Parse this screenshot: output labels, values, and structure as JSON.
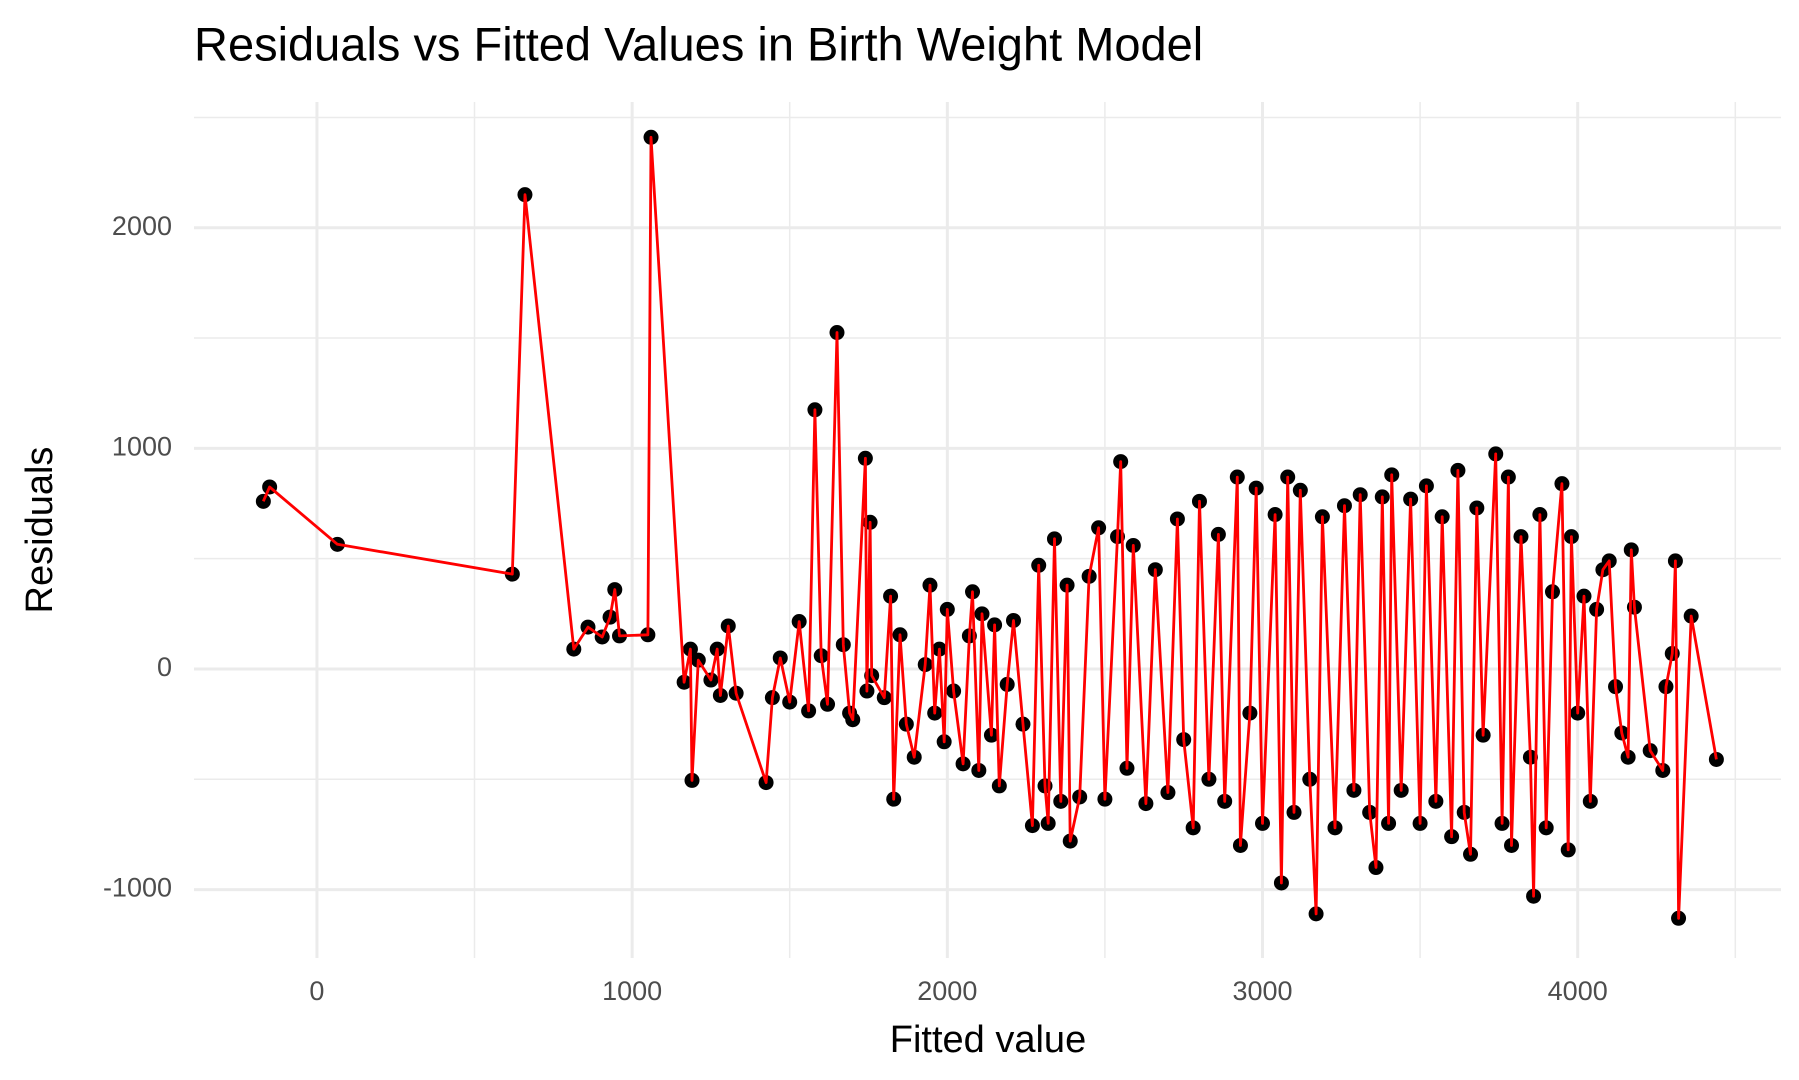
{
  "chart_data": {
    "type": "scatter",
    "title": "Residuals vs Fitted Values in Birth Weight Model",
    "xlabel": "Fitted value",
    "ylabel": "Residuals",
    "point_color": "#000000",
    "line_color": "#ff0000",
    "grid": true,
    "xlim": [
      -390,
      4645
    ],
    "ylim": [
      -1310,
      2570
    ],
    "xticks": [
      0,
      1000,
      2000,
      3000,
      4000
    ],
    "yticks": [
      -1000,
      0,
      1000,
      2000
    ],
    "x_minor_ticks": [
      500,
      1500,
      2500,
      3500,
      4500
    ],
    "y_minor_ticks": [
      -500,
      500,
      1500,
      2500
    ],
    "x": [
      -170,
      -150,
      65,
      620,
      660,
      815,
      860,
      905,
      930,
      945,
      960,
      1050,
      1060,
      1165,
      1185,
      1190,
      1210,
      1250,
      1270,
      1280,
      1305,
      1330,
      1425,
      1445,
      1470,
      1500,
      1530,
      1560,
      1580,
      1600,
      1620,
      1650,
      1670,
      1690,
      1700,
      1740,
      1745,
      1755,
      1760,
      1800,
      1820,
      1830,
      1850,
      1870,
      1895,
      1930,
      1945,
      1960,
      1975,
      1990,
      2000,
      2020,
      2050,
      2070,
      2080,
      2100,
      2110,
      2140,
      2150,
      2165,
      2190,
      2210,
      2240,
      2270,
      2290,
      2310,
      2320,
      2340,
      2360,
      2380,
      2390,
      2420,
      2450,
      2480,
      2500,
      2540,
      2550,
      2570,
      2590,
      2630,
      2660,
      2700,
      2730,
      2750,
      2780,
      2800,
      2830,
      2860,
      2880,
      2920,
      2930,
      2960,
      2980,
      3000,
      3040,
      3060,
      3080,
      3100,
      3120,
      3150,
      3170,
      3190,
      3230,
      3260,
      3290,
      3310,
      3340,
      3360,
      3380,
      3400,
      3410,
      3440,
      3470,
      3500,
      3520,
      3550,
      3570,
      3600,
      3620,
      3640,
      3660,
      3680,
      3700,
      3740,
      3760,
      3780,
      3790,
      3820,
      3850,
      3860,
      3880,
      3900,
      3920,
      3950,
      3970,
      3980,
      4000,
      4020,
      4040,
      4060,
      4080,
      4100,
      4120,
      4140,
      4160,
      4170,
      4180,
      4230,
      4270,
      4280,
      4300,
      4310,
      4320,
      4360,
      4440
    ],
    "values": [
      760,
      825,
      565,
      430,
      2150,
      90,
      190,
      145,
      235,
      360,
      150,
      155,
      2410,
      -60,
      90,
      -505,
      40,
      -50,
      90,
      -120,
      195,
      -110,
      -515,
      -130,
      50,
      -150,
      215,
      -190,
      1175,
      60,
      -160,
      1525,
      110,
      -200,
      -230,
      955,
      -100,
      665,
      -30,
      -130,
      330,
      -590,
      155,
      -250,
      -400,
      20,
      380,
      -200,
      90,
      -330,
      270,
      -100,
      -430,
      150,
      350,
      -460,
      250,
      -300,
      200,
      -530,
      -70,
      220,
      -250,
      -710,
      470,
      -530,
      -700,
      590,
      -600,
      380,
      -780,
      -580,
      420,
      640,
      -590,
      600,
      940,
      -450,
      560,
      -610,
      450,
      -560,
      680,
      -320,
      -720,
      760,
      -500,
      610,
      -600,
      870,
      -800,
      -200,
      820,
      -700,
      700,
      -970,
      870,
      -650,
      810,
      -500,
      -1110,
      690,
      -720,
      740,
      -550,
      790,
      -650,
      -900,
      780,
      -700,
      880,
      -550,
      770,
      -700,
      830,
      -600,
      690,
      -760,
      900,
      -650,
      -840,
      730,
      -300,
      975,
      -700,
      870,
      -800,
      600,
      -400,
      -1030,
      700,
      -720,
      350,
      840,
      -820,
      600,
      -200,
      330,
      -600,
      270,
      450,
      490,
      -80,
      -290,
      -400,
      540,
      280,
      -370,
      -460,
      -80,
      70,
      490,
      -1130,
      240,
      -410
    ]
  }
}
